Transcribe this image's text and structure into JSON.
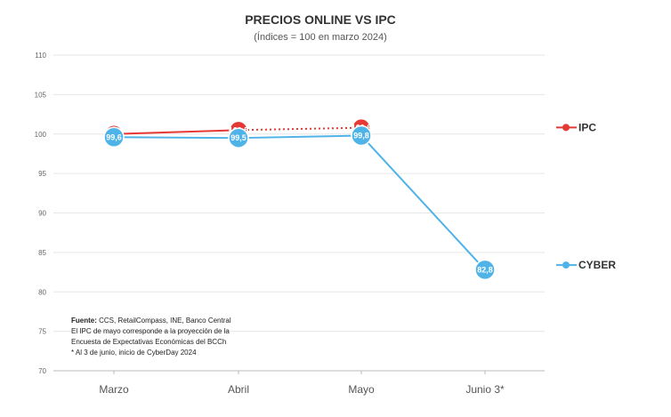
{
  "chart_data": {
    "type": "line",
    "title": "PRECIOS ONLINE VS IPC",
    "subtitle": "(Índices = 100 en marzo 2024)",
    "categories": [
      "Marzo",
      "Abril",
      "Mayo",
      "Junio 3*"
    ],
    "ylim": [
      70,
      110
    ],
    "yticks": [
      70,
      75,
      80,
      85,
      90,
      95,
      100,
      105,
      110
    ],
    "grid": true,
    "legend_placement": "right",
    "series": [
      {
        "name": "IPC",
        "color": "#e53935",
        "values": [
          100,
          100.5,
          100.8,
          null
        ],
        "labels": [
          "",
          "100,5",
          "100,8",
          ""
        ],
        "dashed_segment": [
          1,
          2
        ]
      },
      {
        "name": "CYBER",
        "color": "#4fb3e8",
        "values": [
          99.6,
          99.5,
          99.8,
          82.8
        ],
        "labels": [
          "99,6",
          "99,5",
          "99,8",
          "82,8"
        ]
      }
    ],
    "notes": {
      "source_label": "Fuente:",
      "source_text": " CCS, RetailCompass, INE, Banco Central",
      "lines": [
        "El IPC de mayo corresponde a la proyección de la",
        "Encuesta de Expectativas Económicas del BCCh",
        "* Al 3 de junio, inicio de CyberDay 2024"
      ]
    }
  }
}
